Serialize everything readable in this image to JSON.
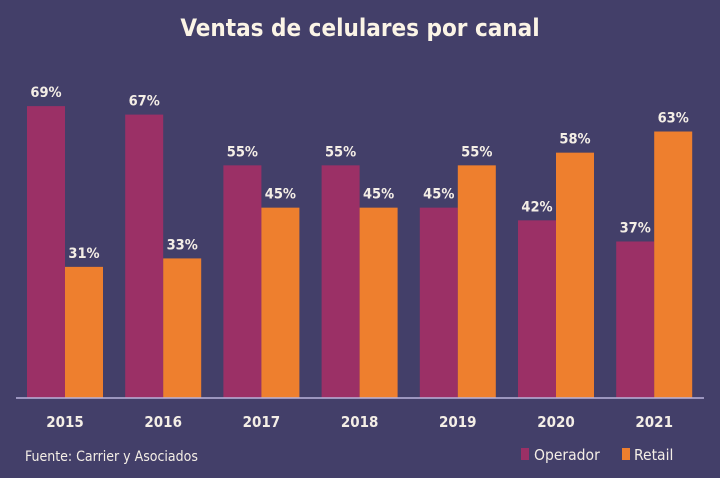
{
  "chart_data": {
    "type": "bar",
    "title": "Ventas de celulares por canal",
    "xlabel": "",
    "ylabel": "",
    "categories": [
      "2015",
      "2016",
      "2017",
      "2018",
      "2019",
      "2020",
      "2021"
    ],
    "series": [
      {
        "name": "Operador",
        "color": "#9b3066",
        "values": [
          69,
          67,
          55,
          55,
          45,
          42,
          37
        ]
      },
      {
        "name": "Retail",
        "color": "#ee7f2e",
        "values": [
          31,
          33,
          45,
          45,
          55,
          58,
          63
        ]
      }
    ],
    "value_suffix": "%",
    "ylim": [
      0,
      100
    ],
    "grid": false,
    "legend": "bottom-right",
    "source": "Fuente: Carrier y Asociados",
    "axis_color": "#b9b4dc"
  }
}
